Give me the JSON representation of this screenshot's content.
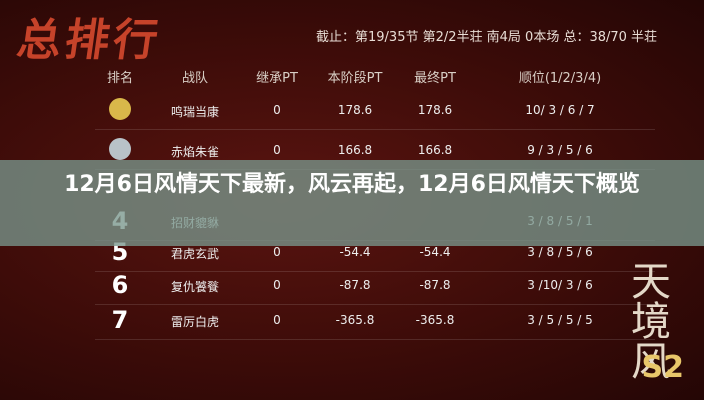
{
  "header": {
    "logo": "总排行",
    "status": "截止：第19/35节 第2/2半荘 南4局 0本场 总：38/70 半荘"
  },
  "table": {
    "columns": [
      "排名",
      "战队",
      "继承PT",
      "本阶段PT",
      "最终PT",
      "顺位(1/2/3/4)"
    ],
    "rows": [
      {
        "team": "鸣瑞当康",
        "inherit": "0",
        "stage": "178.6",
        "final": "178.6",
        "order": "10/ 3 / 6 / 7"
      },
      {
        "team": "赤焰朱雀",
        "inherit": "0",
        "stage": "166.8",
        "final": "166.8",
        "order": "9 / 3 / 5 / 6"
      },
      {
        "rank": "4",
        "team": "招财貔貅",
        "order": "3 / 8 / 5 / 1"
      },
      {
        "rank": "5",
        "team": "君虎玄武",
        "inherit": "0",
        "stage": "-54.4",
        "final": "-54.4",
        "order": "3 / 8 / 5 / 6"
      },
      {
        "rank": "6",
        "team": "复仇饕餮",
        "inherit": "0",
        "stage": "-87.8",
        "final": "-87.8",
        "order": "3 /10/ 3 / 6"
      },
      {
        "rank": "7",
        "team": "雷厉白虎",
        "inherit": "0",
        "stage": "-365.8",
        "final": "-365.8",
        "order": "3 / 5 / 5 / 5"
      }
    ]
  },
  "banner": {
    "title": "12月6日风情天下最新，风云再起，12月6日风情天下概览"
  },
  "corner": {
    "logo": "天境风",
    "tag": "S2"
  }
}
